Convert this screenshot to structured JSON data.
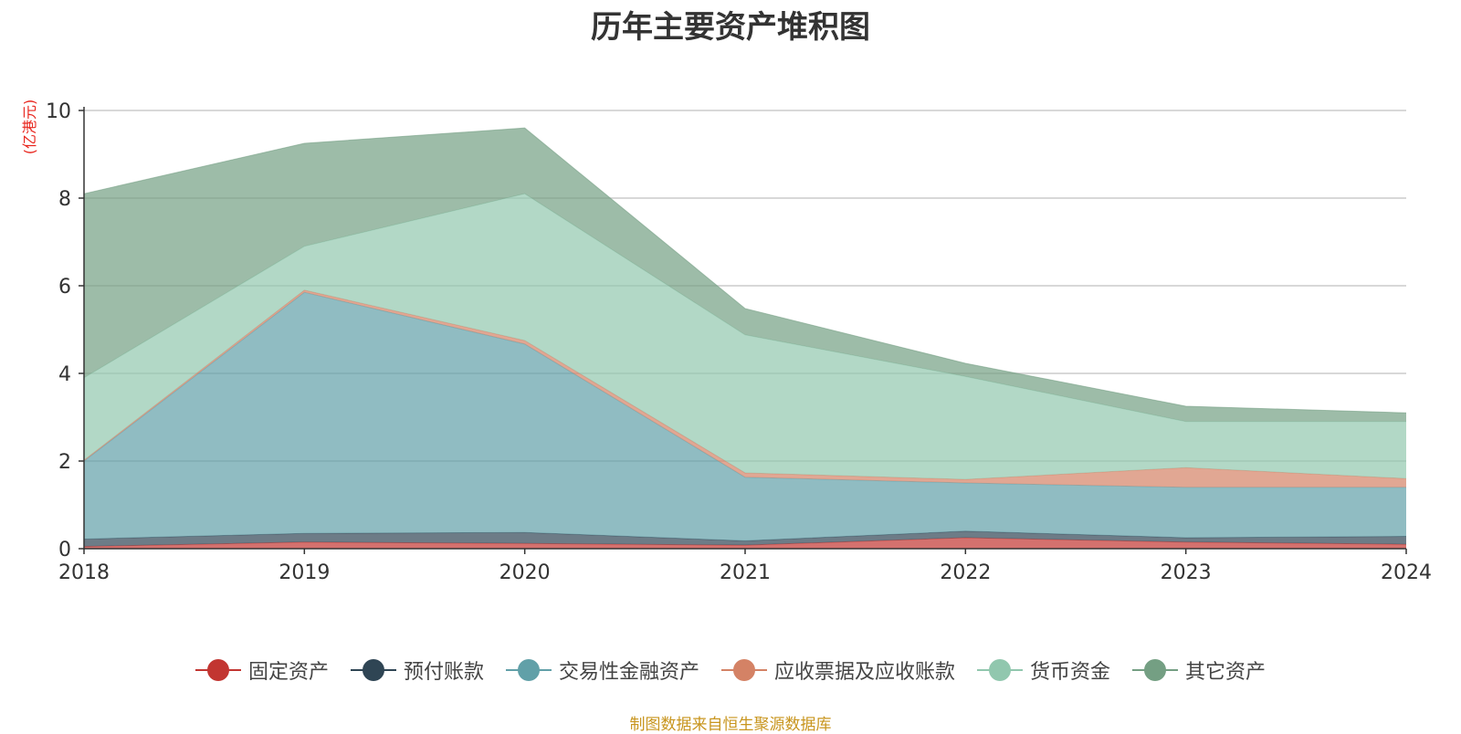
{
  "chart_data": {
    "type": "area",
    "stacked": true,
    "title": "历年主要资产堆积图",
    "unit_label": "(亿港元)",
    "categories": [
      "2018",
      "2019",
      "2020",
      "2021",
      "2022",
      "2023",
      "2024"
    ],
    "ylim": [
      0,
      10
    ],
    "yticks": [
      "0",
      "2",
      "4",
      "6",
      "8",
      "10"
    ],
    "grid": true,
    "legend_position": "bottom",
    "series": [
      {
        "name": "固定资产",
        "color": "#c23531",
        "values": [
          0.05,
          0.15,
          0.12,
          0.08,
          0.25,
          0.15,
          0.1
        ]
      },
      {
        "name": "预付账款",
        "color": "#2f4554",
        "values": [
          0.17,
          0.2,
          0.25,
          0.1,
          0.15,
          0.1,
          0.18
        ]
      },
      {
        "name": "交易性金融资产",
        "color": "#61a0a8",
        "values": [
          1.78,
          5.5,
          4.3,
          1.45,
          1.1,
          1.15,
          1.12
        ]
      },
      {
        "name": "应收票据及应收账款",
        "color": "#d48265",
        "values": [
          0.02,
          0.05,
          0.08,
          0.1,
          0.08,
          0.45,
          0.2
        ]
      },
      {
        "name": "货币资金",
        "color": "#91c7ae",
        "values": [
          1.88,
          1.0,
          3.35,
          3.15,
          2.35,
          1.05,
          1.3
        ]
      },
      {
        "name": "其它资产",
        "color": "#749f83",
        "values": [
          4.2,
          2.35,
          1.5,
          0.6,
          0.3,
          0.35,
          0.2
        ]
      }
    ]
  },
  "source_note": "制图数据来自恒生聚源数据库"
}
